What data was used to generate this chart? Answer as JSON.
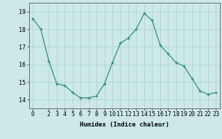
{
  "x": [
    0,
    1,
    2,
    3,
    4,
    5,
    6,
    7,
    8,
    9,
    10,
    11,
    12,
    13,
    14,
    15,
    16,
    17,
    18,
    19,
    20,
    21,
    22,
    23
  ],
  "y": [
    18.6,
    18.0,
    16.2,
    14.9,
    14.8,
    14.4,
    14.1,
    14.1,
    14.2,
    14.9,
    16.1,
    17.2,
    17.5,
    18.0,
    18.9,
    18.5,
    17.1,
    16.6,
    16.1,
    15.9,
    15.2,
    14.5,
    14.3,
    14.4
  ],
  "line_color": "#2e8b7a",
  "marker": "+",
  "marker_size": 3,
  "xlabel": "Humidex (Indice chaleur)",
  "ylim": [
    13.5,
    19.5
  ],
  "xlim": [
    -0.5,
    23.5
  ],
  "yticks": [
    14,
    15,
    16,
    17,
    18,
    19
  ],
  "xticks": [
    0,
    2,
    3,
    4,
    5,
    6,
    7,
    8,
    9,
    10,
    11,
    12,
    13,
    14,
    15,
    16,
    17,
    18,
    19,
    20,
    21,
    22,
    23
  ],
  "xtick_labels": [
    "0",
    "2",
    "3",
    "4",
    "5",
    "6",
    "7",
    "8",
    "9",
    "10",
    "11",
    "12",
    "13",
    "14",
    "15",
    "16",
    "17",
    "18",
    "19",
    "20",
    "21",
    "22",
    "23"
  ],
  "background_color": "#cce8e8",
  "grid_color": "#aacfcf",
  "axis_color": "#666666",
  "label_fontsize": 6.5,
  "tick_fontsize": 6,
  "linewidth": 0.9
}
